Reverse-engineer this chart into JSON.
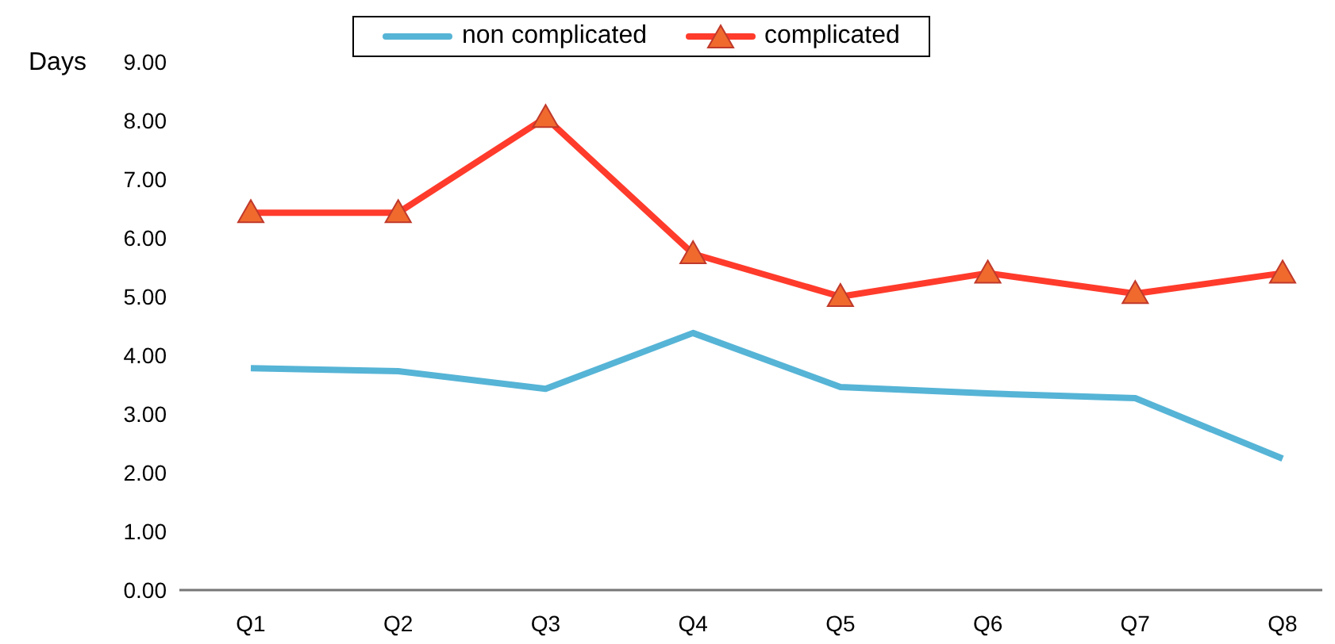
{
  "chart_data": {
    "type": "line",
    "ylabel": "Days",
    "categories": [
      "Q1",
      "Q2",
      "Q3",
      "Q4",
      "Q5",
      "Q6",
      "Q7",
      "Q8"
    ],
    "series": [
      {
        "name": "non complicated",
        "color": "#56b4d6",
        "marker": "none",
        "values": [
          3.78,
          3.73,
          3.43,
          4.38,
          3.46,
          3.35,
          3.27,
          2.24
        ]
      },
      {
        "name": "complicated",
        "color": "#ff3b2b",
        "marker": "triangle",
        "values": [
          6.43,
          6.43,
          8.05,
          5.73,
          5.0,
          5.4,
          5.05,
          5.4
        ]
      }
    ],
    "ylim": [
      0,
      9
    ],
    "yticks": [
      {
        "value": 0,
        "label": "0.00"
      },
      {
        "value": 1,
        "label": "1.00"
      },
      {
        "value": 2,
        "label": "2.00"
      },
      {
        "value": 3,
        "label": "3.00"
      },
      {
        "value": 4,
        "label": "4.00"
      },
      {
        "value": 5,
        "label": "5.00"
      },
      {
        "value": 6,
        "label": "6.00"
      },
      {
        "value": 7,
        "label": "7.00"
      },
      {
        "value": 8,
        "label": "8.00"
      },
      {
        "value": 9,
        "label": "9.00"
      }
    ],
    "grid": false,
    "legend": "top",
    "line_style": "solid"
  }
}
